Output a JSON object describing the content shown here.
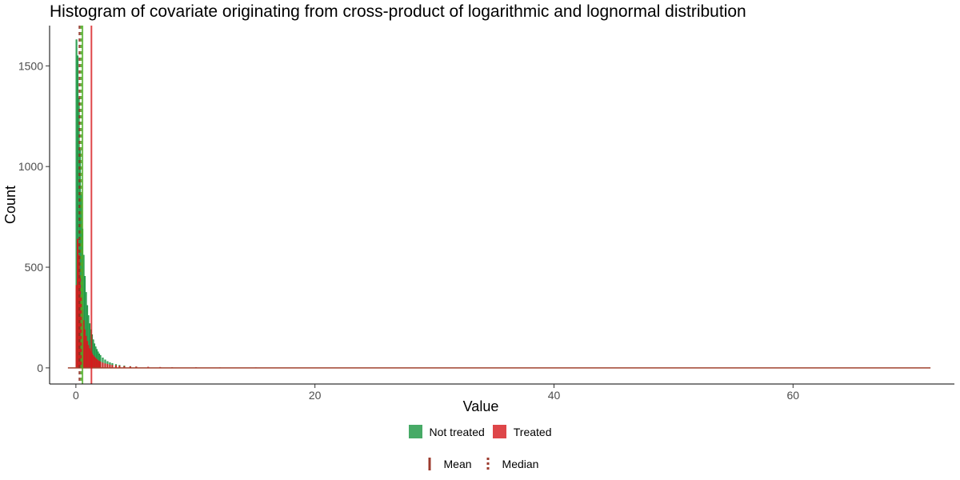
{
  "chart_data": {
    "type": "bar",
    "title": "Histogram of covariate originating from cross-product of logarithmic and lognormal distribution",
    "xlabel": "Value",
    "ylabel": "Count",
    "xlim": [
      -2.2,
      73.5
    ],
    "ylim": [
      -80,
      1700
    ],
    "x_ticks": [
      0,
      20,
      40,
      60
    ],
    "y_ticks": [
      0,
      500,
      1000,
      1500
    ],
    "grid": false,
    "bin_width": 0.1,
    "series": [
      {
        "name": "Not treated",
        "color": "#1a9641",
        "bins": [
          [
            0.0,
            1630
          ],
          [
            0.1,
            1550
          ],
          [
            0.2,
            1340
          ],
          [
            0.3,
            1080
          ],
          [
            0.4,
            860
          ],
          [
            0.5,
            690
          ],
          [
            0.6,
            560
          ],
          [
            0.7,
            455
          ],
          [
            0.8,
            375
          ],
          [
            0.9,
            310
          ],
          [
            1.0,
            260
          ],
          [
            1.1,
            220
          ],
          [
            1.2,
            190
          ],
          [
            1.3,
            165
          ],
          [
            1.4,
            140
          ],
          [
            1.5,
            120
          ],
          [
            1.6,
            105
          ],
          [
            1.7,
            92
          ],
          [
            1.8,
            80
          ],
          [
            1.9,
            70
          ],
          [
            2.0,
            62
          ],
          [
            2.2,
            50
          ],
          [
            2.4,
            40
          ],
          [
            2.6,
            32
          ],
          [
            2.8,
            26
          ],
          [
            3.0,
            22
          ],
          [
            3.3,
            17
          ],
          [
            3.6,
            13
          ],
          [
            4.0,
            10
          ],
          [
            4.5,
            7
          ],
          [
            5.0,
            5
          ],
          [
            6.0,
            3
          ],
          [
            7.0,
            2
          ],
          [
            8.0,
            1
          ]
        ]
      },
      {
        "name": "Treated",
        "color": "#d7191c",
        "bins": [
          [
            0.0,
            410
          ],
          [
            0.1,
            640
          ],
          [
            0.2,
            560
          ],
          [
            0.3,
            450
          ],
          [
            0.4,
            360
          ],
          [
            0.5,
            290
          ],
          [
            0.6,
            235
          ],
          [
            0.7,
            190
          ],
          [
            0.8,
            158
          ],
          [
            0.9,
            132
          ],
          [
            1.0,
            112
          ],
          [
            1.1,
            96
          ],
          [
            1.2,
            82
          ],
          [
            1.3,
            71
          ],
          [
            1.4,
            62
          ],
          [
            1.5,
            54
          ],
          [
            1.6,
            48
          ],
          [
            1.7,
            42
          ],
          [
            1.8,
            37
          ],
          [
            1.9,
            33
          ],
          [
            2.0,
            30
          ],
          [
            2.2,
            25
          ],
          [
            2.4,
            21
          ],
          [
            2.6,
            18
          ],
          [
            2.8,
            15
          ],
          [
            3.0,
            13
          ],
          [
            3.3,
            11
          ],
          [
            3.6,
            9
          ],
          [
            4.0,
            7
          ],
          [
            4.5,
            6
          ],
          [
            5.0,
            5
          ],
          [
            6.0,
            4
          ],
          [
            7.0,
            3
          ],
          [
            8.0,
            2
          ],
          [
            10.0,
            2
          ],
          [
            12.0,
            1
          ],
          [
            15.0,
            1
          ]
        ]
      }
    ],
    "tail_range": [
      0,
      71.5
    ],
    "mean_lines": [
      {
        "series": "Not treated",
        "value": 0.55,
        "style": "solid",
        "color": "#4dac26"
      },
      {
        "series": "Treated",
        "value": 1.3,
        "style": "solid",
        "color": "#d7191c"
      }
    ],
    "median_lines": [
      {
        "series": "Not treated",
        "value": 0.45,
        "style": "dashed",
        "color": "#4dac26"
      },
      {
        "series": "Treated",
        "value": 0.3,
        "style": "dashed",
        "color": "#8c2d1e"
      }
    ],
    "legend": {
      "placement": "bottom",
      "fill_entries": [
        {
          "label": "Not treated",
          "color": "#1a9641"
        },
        {
          "label": "Treated",
          "color": "#d7191c"
        }
      ],
      "line_entries": [
        {
          "label": "Mean",
          "style": "solid",
          "color": "#9c3b2e"
        },
        {
          "label": "Median",
          "style": "dashed",
          "color": "#9c3b2e"
        }
      ]
    }
  }
}
